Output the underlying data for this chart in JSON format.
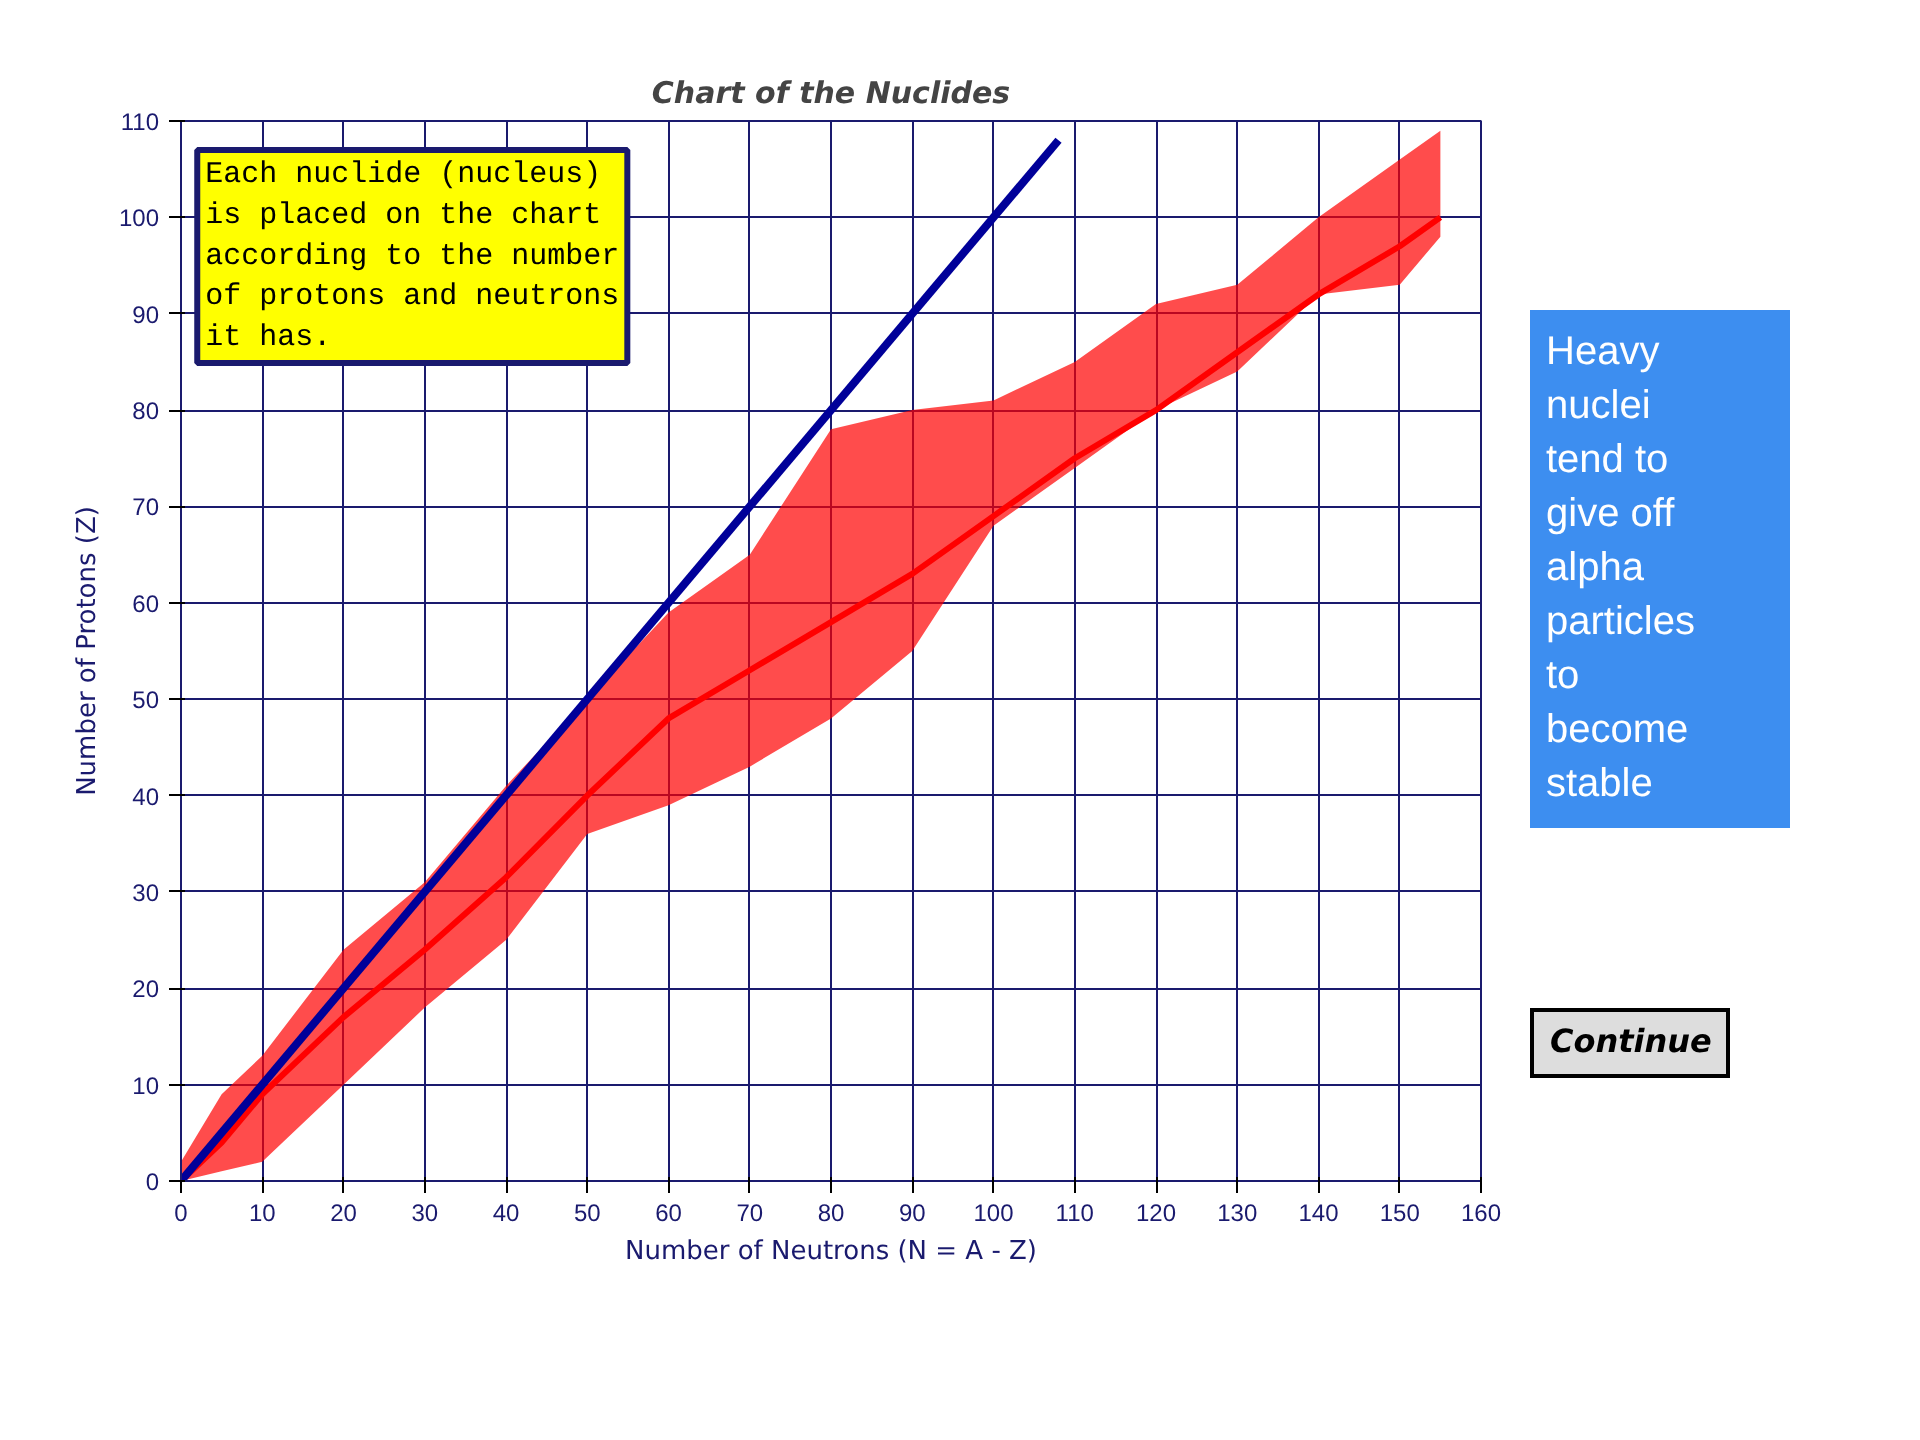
{
  "chart_data": {
    "type": "line",
    "title": "Chart of the Nuclides",
    "xlabel": "Number of Neutrons (N = A - Z)",
    "ylabel": "Number of Protons (Z)",
    "xlim": [
      0,
      160
    ],
    "ylim": [
      0,
      110
    ],
    "xticks": [
      0,
      10,
      20,
      30,
      40,
      50,
      60,
      70,
      80,
      90,
      100,
      110,
      120,
      130,
      140,
      150,
      160
    ],
    "yticks": [
      0,
      10,
      20,
      30,
      40,
      50,
      60,
      70,
      80,
      90,
      100,
      110
    ],
    "grid": true,
    "marker": "none",
    "line_style": "solid",
    "series": [
      {
        "color": "#ff0000",
        "x": [
          0,
          5,
          10,
          20,
          30,
          40,
          50,
          60,
          70,
          80,
          90,
          100,
          110,
          120,
          130,
          140,
          150,
          155
        ],
        "values": [
          0,
          4,
          9,
          17,
          24,
          31.5,
          40,
          48,
          53,
          58,
          63,
          69,
          75,
          80,
          86,
          92,
          97,
          100
        ],
        "lower": [
          0,
          1,
          2,
          10,
          18,
          25,
          36,
          39,
          43,
          48,
          55,
          68,
          74,
          80,
          84,
          92,
          93,
          98
        ],
        "upper": [
          2,
          9,
          13,
          24,
          31,
          41,
          50,
          59,
          65,
          78,
          80,
          81,
          85,
          91,
          93,
          100,
          106,
          109
        ]
      },
      {
        "color": "#000099",
        "x": [
          0,
          108
        ],
        "values": [
          0,
          108
        ]
      }
    ],
    "annotations": [
      "Each nuclide (nucleus)\nis placed on the chart\naccording to the number\nof protons and neutrons\nit has.",
      "Heavy\nnuclei\ntend to\ngive off\nalpha\nparticles\nto\nbecome\nstable",
      "Continue"
    ]
  }
}
